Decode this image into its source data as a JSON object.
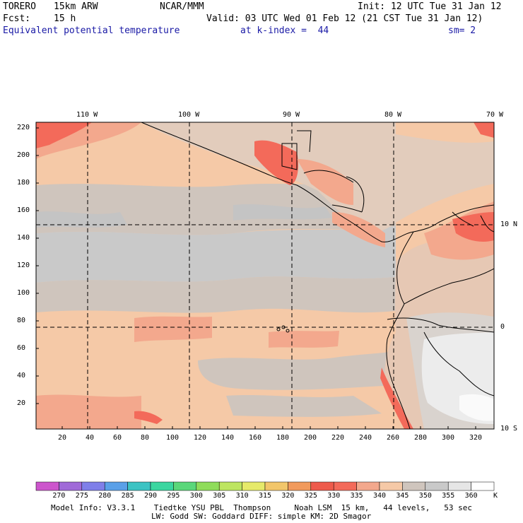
{
  "header": {
    "model": "TORERO",
    "resolution": "15km ARW",
    "center": "NCAR/MMM",
    "init": "Init: 12 UTC Tue 31 Jan 12",
    "fcst_label": "Fcst:",
    "fcst_value": "15 h",
    "valid": "Valid: 03 UTC Wed 01 Feb 12 (21 CST Tue 31 Jan 12)",
    "field": "Equivalent potential temperature",
    "level": "at k-index =  44",
    "smooth": "sm= 2"
  },
  "map": {
    "longitude_labels": [
      "110 W",
      "100 W",
      "90 W",
      "80 W",
      "70 W"
    ],
    "latitude_labels": [
      "10 N",
      "0",
      "10 S"
    ],
    "grid_y_ticks": [
      "220",
      "200",
      "180",
      "160",
      "140",
      "120",
      "100",
      "80",
      "60",
      "40",
      "20"
    ],
    "grid_x_ticks": [
      "20",
      "40",
      "60",
      "80",
      "100",
      "120",
      "140",
      "160",
      "180",
      "200",
      "220",
      "240",
      "260",
      "280",
      "300",
      "320"
    ],
    "colors": {
      "ocean_warm": "#f5c9a7",
      "ocean_cool": "#cfc5bd",
      "grey": "#c9c9c9",
      "salmon": "#f3a88d",
      "red": "#f36a5a",
      "light": "#ececec",
      "white": "#fafafa"
    }
  },
  "colorbar": {
    "labels": [
      "270",
      "275",
      "280",
      "285",
      "290",
      "295",
      "300",
      "305",
      "310",
      "315",
      "320",
      "325",
      "330",
      "335",
      "340",
      "345",
      "350",
      "355",
      "360"
    ],
    "unit": "K",
    "colors": [
      "#cc55cc",
      "#a06ad8",
      "#7f7fe9",
      "#5aa0e8",
      "#3cc3c3",
      "#3bd6a0",
      "#5ad77a",
      "#8fdc5a",
      "#bde560",
      "#e6ea6a",
      "#f2c66a",
      "#f19a5c",
      "#ee5b4c",
      "#f36a5a",
      "#f3a88d",
      "#f5c9a7",
      "#cfc5bd",
      "#c9c9c9",
      "#e6e6e6",
      "#ffffff"
    ]
  },
  "footer": {
    "line1": "Model Info: V3.3.1    Tiedtke YSU PBL  Thompson     Noah LSM  15 km,   44 levels,   53 sec",
    "line2": "LW: Godd SW: Goddard DIFF: simple KM: 2D Smagor"
  }
}
